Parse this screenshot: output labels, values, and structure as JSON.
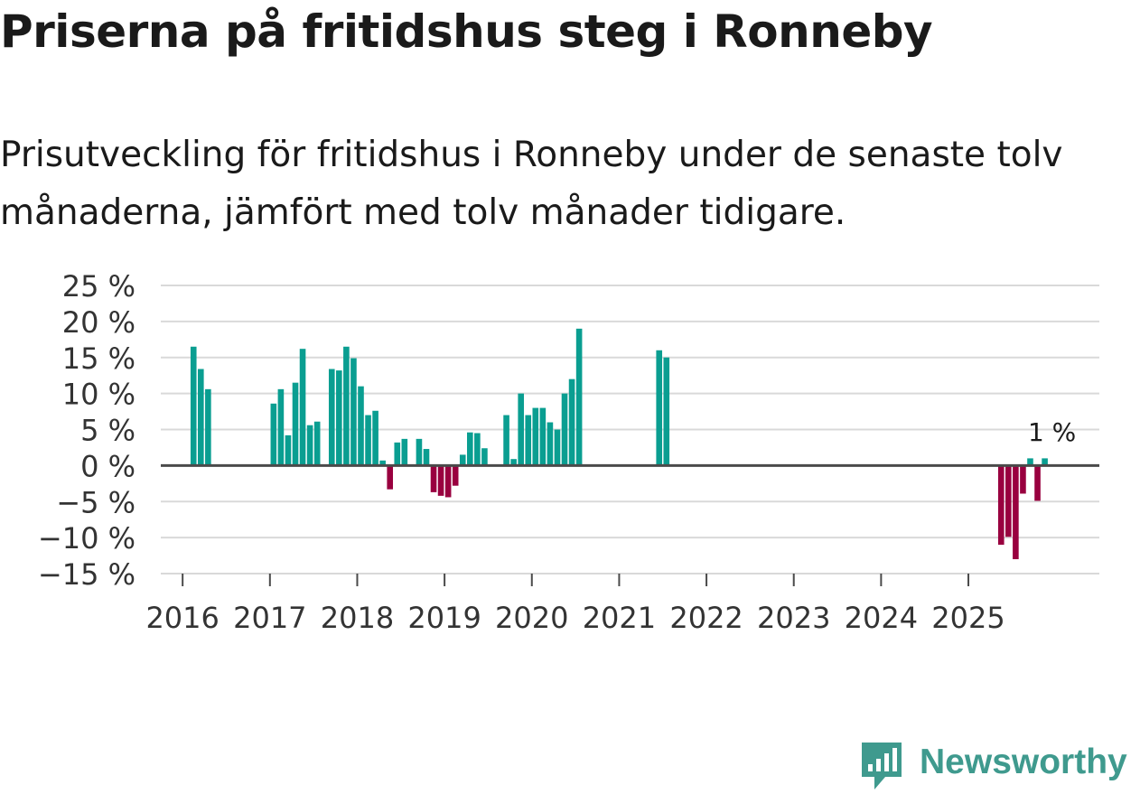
{
  "title": "Priserna på fritidshus steg i Ronneby",
  "subtitle": "Prisutveckling för fritidshus i Ronneby under de senaste tolv månaderna, jämfört med tolv månader tidigare.",
  "brand": {
    "name": "Newsworthy"
  },
  "colors": {
    "positive": "#0a9e91",
    "negative": "#99003f",
    "grid": "#d9d9d9",
    "zero": "#4a4a4a",
    "brand": "#3f9a8e"
  },
  "chart_data": {
    "type": "bar",
    "unit": "%",
    "ylim": [
      -15,
      25
    ],
    "yticks": [
      25,
      20,
      15,
      10,
      5,
      0,
      -5,
      -10,
      -15
    ],
    "ytick_labels": [
      "25 %",
      "20 %",
      "15 %",
      "10 %",
      "5 %",
      "0 %",
      "−5 %",
      "−10 %",
      "−15 %"
    ],
    "xlim": [
      "2015-10",
      "2026-07"
    ],
    "xticks": [
      "2016",
      "2017",
      "2018",
      "2019",
      "2020",
      "2021",
      "2022",
      "2023",
      "2024",
      "2025"
    ],
    "annotation": {
      "label": "1 %",
      "month": "2025-12"
    },
    "series": [
      {
        "name": "Prisutveckling",
        "points": [
          [
            "2016-02",
            16.5
          ],
          [
            "2016-03",
            13.4
          ],
          [
            "2016-04",
            10.6
          ],
          [
            "2017-01",
            8.6
          ],
          [
            "2017-02",
            10.6
          ],
          [
            "2017-03",
            4.2
          ],
          [
            "2017-04",
            11.5
          ],
          [
            "2017-05",
            16.2
          ],
          [
            "2017-06",
            5.6
          ],
          [
            "2017-07",
            6.1
          ],
          [
            "2017-09",
            13.4
          ],
          [
            "2017-10",
            13.2
          ],
          [
            "2017-11",
            16.5
          ],
          [
            "2017-12",
            14.9
          ],
          [
            "2018-01",
            11.0
          ],
          [
            "2018-02",
            7.0
          ],
          [
            "2018-03",
            7.6
          ],
          [
            "2018-04",
            0.7
          ],
          [
            "2018-05",
            -3.3
          ],
          [
            "2018-06",
            3.2
          ],
          [
            "2018-07",
            3.7
          ],
          [
            "2018-09",
            3.7
          ],
          [
            "2018-10",
            2.3
          ],
          [
            "2018-11",
            -3.7
          ],
          [
            "2018-12",
            -4.2
          ],
          [
            "2019-01",
            -4.4
          ],
          [
            "2019-02",
            -2.8
          ],
          [
            "2019-03",
            1.5
          ],
          [
            "2019-04",
            4.6
          ],
          [
            "2019-05",
            4.5
          ],
          [
            "2019-06",
            2.4
          ],
          [
            "2019-09",
            7.0
          ],
          [
            "2019-10",
            0.9
          ],
          [
            "2019-11",
            10.0
          ],
          [
            "2019-12",
            7.0
          ],
          [
            "2020-01",
            8.0
          ],
          [
            "2020-02",
            8.0
          ],
          [
            "2020-03",
            6.0
          ],
          [
            "2020-04",
            5.0
          ],
          [
            "2020-05",
            10.0
          ],
          [
            "2020-06",
            12.0
          ],
          [
            "2020-07",
            19.0
          ],
          [
            "2021-06",
            16.0
          ],
          [
            "2021-07",
            15.0
          ],
          [
            "2025-05",
            -11.0
          ],
          [
            "2025-06",
            -9.9
          ],
          [
            "2025-07",
            -13.0
          ],
          [
            "2025-08",
            -3.9
          ],
          [
            "2025-09",
            1.0
          ],
          [
            "2025-10",
            -4.9
          ],
          [
            "2025-11",
            1.0
          ]
        ]
      }
    ]
  }
}
